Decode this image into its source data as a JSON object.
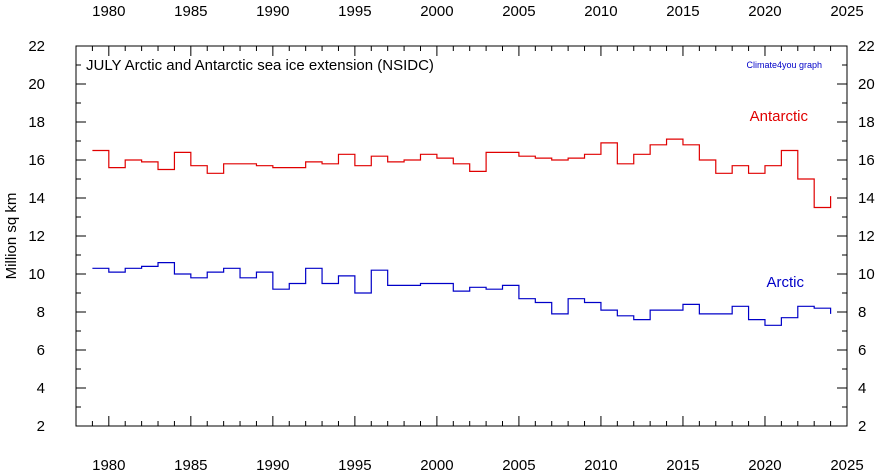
{
  "chart_data": {
    "type": "line",
    "step": true,
    "title": "JULY Arctic and Antarctic sea ice extension (NSIDC)",
    "credit": "Climate4you graph",
    "ylabel": "Million sq km",
    "xlabel": "",
    "xlim": [
      1978,
      2025
    ],
    "ylim": [
      2,
      22
    ],
    "x_ticks": [
      1980,
      1985,
      1990,
      1995,
      2000,
      2005,
      2010,
      2015,
      2020,
      2025
    ],
    "y_ticks": [
      2,
      4,
      6,
      8,
      10,
      12,
      14,
      16,
      18,
      20,
      22
    ],
    "grid": false,
    "x": [
      1979,
      1980,
      1981,
      1982,
      1983,
      1984,
      1985,
      1986,
      1987,
      1988,
      1989,
      1990,
      1991,
      1992,
      1993,
      1994,
      1995,
      1996,
      1997,
      1998,
      1999,
      2000,
      2001,
      2002,
      2003,
      2004,
      2005,
      2006,
      2007,
      2008,
      2009,
      2010,
      2011,
      2012,
      2013,
      2014,
      2015,
      2016,
      2017,
      2018,
      2019,
      2020,
      2021,
      2022,
      2023,
      2024
    ],
    "series": [
      {
        "name": "Antarctic",
        "color": "#e00000",
        "values": [
          16.5,
          15.6,
          16.0,
          15.9,
          15.5,
          16.4,
          15.7,
          15.3,
          15.8,
          15.8,
          15.7,
          15.6,
          15.6,
          15.9,
          15.8,
          16.3,
          15.7,
          16.2,
          15.9,
          16.0,
          16.3,
          16.1,
          15.8,
          15.4,
          16.4,
          16.4,
          16.2,
          16.1,
          16.0,
          16.1,
          16.3,
          16.9,
          15.8,
          16.3,
          16.8,
          17.1,
          16.8,
          16.0,
          15.3,
          15.7,
          15.3,
          15.7,
          16.5,
          15.0,
          13.5,
          14.1
        ]
      },
      {
        "name": "Arctic",
        "color": "#0000c8",
        "values": [
          10.3,
          10.1,
          10.3,
          10.4,
          10.6,
          10.0,
          9.8,
          10.1,
          10.3,
          9.8,
          10.1,
          9.2,
          9.5,
          10.3,
          9.5,
          9.9,
          9.0,
          10.2,
          9.4,
          9.4,
          9.5,
          9.5,
          9.1,
          9.3,
          9.2,
          9.4,
          8.7,
          8.5,
          7.9,
          8.7,
          8.5,
          8.1,
          7.8,
          7.6,
          8.1,
          8.1,
          8.4,
          7.9,
          7.9,
          8.3,
          7.6,
          7.3,
          7.7,
          8.3,
          8.2,
          7.9
        ]
      }
    ]
  }
}
